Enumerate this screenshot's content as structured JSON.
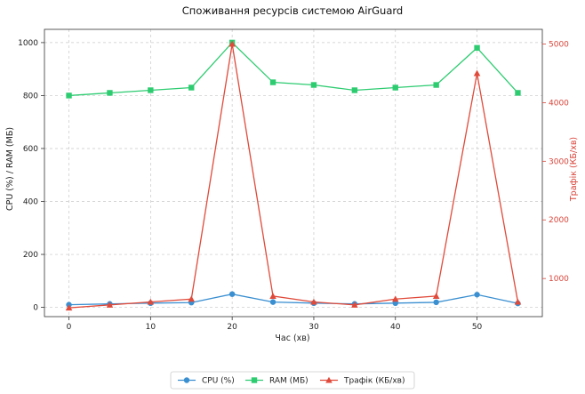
{
  "chart_data": {
    "type": "line",
    "title": "Споживання ресурсів системою AirGuard",
    "xlabel": "Час (хв)",
    "ylabel_left": "CPU (%) / RAM (МБ)",
    "ylabel_right": "Трафік (КБ/хв)",
    "xlim": [
      -3,
      58
    ],
    "ylim_left": [
      -35,
      1050
    ],
    "ylim_right": [
      350,
      5250
    ],
    "x_ticks": [
      0,
      10,
      20,
      30,
      40,
      50
    ],
    "y_ticks_left": [
      0,
      200,
      400,
      600,
      800,
      1000
    ],
    "y_ticks_right": [
      1000,
      2000,
      3000,
      4000,
      5000
    ],
    "grid": true,
    "legend_position": "bottom-center",
    "x": [
      0,
      5,
      10,
      15,
      20,
      25,
      30,
      35,
      40,
      45,
      50,
      55
    ],
    "series": [
      {
        "name": "CPU (%)",
        "axis": "left",
        "color": "#3a8fd1",
        "marker": "circle",
        "values": [
          10,
          13,
          16,
          18,
          50,
          20,
          16,
          13,
          16,
          19,
          48,
          15
        ]
      },
      {
        "name": "RAM (МБ)",
        "axis": "left",
        "color": "#2ecc71",
        "marker": "square",
        "values": [
          800,
          810,
          820,
          830,
          1000,
          850,
          840,
          820,
          830,
          840,
          980,
          810
        ]
      },
      {
        "name": "Трафік (КБ/хв)",
        "axis": "right",
        "color": "#e04a3a",
        "marker": "triangle",
        "values": [
          500,
          550,
          600,
          650,
          5000,
          700,
          600,
          550,
          650,
          700,
          4500,
          600
        ]
      }
    ]
  }
}
